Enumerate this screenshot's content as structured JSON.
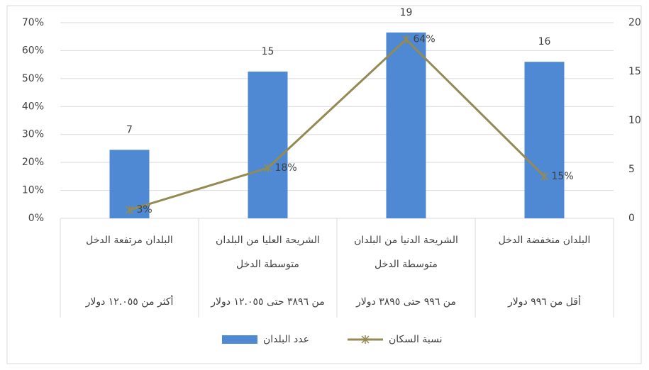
{
  "chart_data": {
    "type": "bar_line",
    "categories": [
      "البلدان مرتفعة الدخل",
      "الشريحة العليا من البلدان متوسطة الدخل",
      "الشريحة الدنيا من البلدان متوسطة الدخل",
      "البلدان منخفضة الدخل"
    ],
    "category_ranges": [
      "أكثر من ١٢.٠٥٥ دولار",
      "من ٣٨٩٦ حتى ١٢.٠٥٥ دولار",
      "من ٩٩٦ حتى ٣٨٩٥ دولار",
      "أقل من ٩٩٦ دولار"
    ],
    "series": [
      {
        "name": "عدد البلدان",
        "type": "bar",
        "axis": "y2",
        "color": "#4f89d4",
        "values": [
          7,
          15,
          19,
          16
        ]
      },
      {
        "name": "نسبة السكان",
        "type": "line",
        "axis": "y",
        "color": "#948a54",
        "values": [
          3,
          18,
          64,
          15
        ],
        "value_labels": [
          "3%",
          "18%",
          "64%",
          "15%"
        ]
      }
    ],
    "ylim": [
      0,
      70
    ],
    "yticks": [
      {
        "value": 0,
        "label": "0%"
      },
      {
        "value": 10,
        "label": "10%"
      },
      {
        "value": 20,
        "label": "20%"
      },
      {
        "value": 30,
        "label": "30%"
      },
      {
        "value": 40,
        "label": "40%"
      },
      {
        "value": 50,
        "label": "50%"
      },
      {
        "value": 60,
        "label": "60%"
      },
      {
        "value": 70,
        "label": "70%"
      }
    ],
    "y2lim": [
      0,
      20
    ],
    "y2ticks": [
      0,
      5,
      10,
      15,
      20
    ],
    "grid": true
  }
}
